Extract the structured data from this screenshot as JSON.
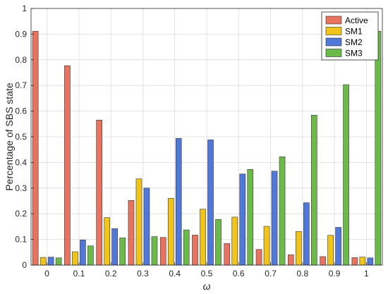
{
  "chart_data": {
    "type": "bar",
    "xlabel": "ω",
    "ylabel": "Percentage of SBS state",
    "ylim": [
      0,
      1
    ],
    "yticks": [
      "0",
      "0.1",
      "0.2",
      "0.3",
      "0.4",
      "0.5",
      "0.6",
      "0.7",
      "0.8",
      "0.9",
      "1"
    ],
    "categories": [
      "0",
      "0.1",
      "0.2",
      "0.3",
      "0.4",
      "0.5",
      "0.6",
      "0.7",
      "0.8",
      "0.9",
      "1"
    ],
    "grid": true,
    "legend_position": "top-right",
    "series": [
      {
        "name": "Active",
        "color": "#e8735f",
        "values": [
          0.911,
          0.777,
          0.565,
          0.252,
          0.108,
          0.117,
          0.084,
          0.061,
          0.04,
          0.033,
          0.029
        ]
      },
      {
        "name": "SM1",
        "color": "#f0c419",
        "values": [
          0.03,
          0.052,
          0.185,
          0.336,
          0.26,
          0.218,
          0.187,
          0.151,
          0.131,
          0.116,
          0.031
        ]
      },
      {
        "name": "SM2",
        "color": "#5078d8",
        "values": [
          0.031,
          0.098,
          0.142,
          0.3,
          0.494,
          0.488,
          0.355,
          0.366,
          0.243,
          0.147,
          0.028
        ]
      },
      {
        "name": "SM3",
        "color": "#6cba4a",
        "values": [
          0.028,
          0.075,
          0.106,
          0.111,
          0.137,
          0.178,
          0.373,
          0.422,
          0.584,
          0.703,
          0.911
        ]
      }
    ]
  }
}
